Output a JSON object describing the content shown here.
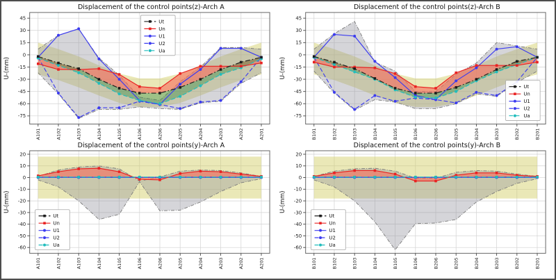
{
  "figure": {
    "border_color": "#4d4d4d",
    "background": "#ffffff"
  },
  "legend_labels": [
    "Ut",
    "Un",
    "U1",
    "U2",
    "Ua"
  ],
  "series_styles": {
    "Ut": {
      "color": "#1c1c1c",
      "dash": "7 3 1.5 3",
      "marker": "square"
    },
    "Un": {
      "color": "#e92222",
      "dash": "",
      "marker": "square"
    },
    "U1": {
      "color": "#3b3bf0",
      "dash": "",
      "marker": "circle"
    },
    "U2": {
      "color": "#3b3bf0",
      "dash": "6 3",
      "marker": "circle"
    },
    "Ua": {
      "color": "#21bdbd",
      "dash": "6 3",
      "marker": "circle"
    }
  },
  "band_colors": {
    "yellow": "rgba(209,203,96,0.45)",
    "gray": "rgba(145,145,155,0.38)",
    "gray_border": "#7a7a7a",
    "fill_un": "rgba(248,105,90,0.60)",
    "fill_ua": "rgba(52,140,70,0.42)"
  },
  "chart_data": [
    {
      "type": "line",
      "title": "Displacement of the control points(z)-Arch A",
      "ylabel": "U-(mm)",
      "categories": [
        "A101",
        "A102",
        "A103",
        "A104",
        "A105",
        "A106",
        "A206",
        "A205",
        "A204",
        "A203",
        "A202",
        "A201"
      ],
      "yticks": [
        45,
        30,
        15,
        0,
        -15,
        -30,
        -45,
        -60,
        -75
      ],
      "ylim": [
        -85,
        52
      ],
      "grid": true,
      "legend_pos": "upper-center",
      "series": [
        {
          "name": "Ut",
          "values": [
            -2,
            -10,
            -17,
            -30,
            -41,
            -47,
            -47,
            -40,
            -30,
            -18,
            -9,
            -3
          ]
        },
        {
          "name": "Un",
          "values": [
            -11,
            -18,
            -18,
            -17,
            -24,
            -39,
            -41,
            -23,
            -14,
            -14,
            -14,
            -10
          ]
        },
        {
          "name": "U1",
          "values": [
            -3,
            24,
            32,
            -5,
            -30,
            -56,
            -61,
            -36,
            -18,
            8,
            8,
            -3
          ]
        },
        {
          "name": "U2",
          "values": [
            -3,
            -47,
            -77,
            -65,
            -65,
            -57,
            -61,
            -66,
            -58,
            -56,
            -33,
            -3
          ]
        },
        {
          "name": "Ua",
          "values": [
            -4,
            -13,
            -22,
            -35,
            -48,
            -56,
            -60,
            -51,
            -38,
            -24,
            -16,
            -5
          ]
        }
      ],
      "bands": {
        "yellow_upper": [
          15,
          7,
          -2,
          -13,
          -23,
          -29,
          -29,
          -23,
          -13,
          -2,
          7,
          15
        ],
        "yellow_lower": [
          -24,
          -31,
          -40,
          -50,
          -59,
          -64,
          -64,
          -59,
          -50,
          -40,
          -31,
          -24
        ],
        "gray_upper": [
          7,
          24,
          32,
          -4,
          -25,
          -52,
          -56,
          -33,
          -15,
          9,
          9,
          7
        ],
        "gray_lower": [
          -22,
          -48,
          -78,
          -67,
          -67,
          -64,
          -66,
          -67,
          -59,
          -57,
          -35,
          -22
        ]
      }
    },
    {
      "type": "line",
      "title": "Displacement of the control points(z)-Arch B",
      "ylabel": "U-(mm)",
      "categories": [
        "B101",
        "B102",
        "B103",
        "B104",
        "B105",
        "B106",
        "B206",
        "B205",
        "B204",
        "B203",
        "B202",
        "B201"
      ],
      "yticks": [
        45,
        30,
        15,
        0,
        -15,
        -30,
        -45,
        -60,
        -75
      ],
      "ylim": [
        -85,
        52
      ],
      "grid": true,
      "legend_pos": "lower-right",
      "series": [
        {
          "name": "Ut",
          "values": [
            -2,
            -9,
            -17,
            -29,
            -41,
            -47,
            -47,
            -40,
            -30,
            -18,
            -8,
            -3
          ]
        },
        {
          "name": "Un",
          "values": [
            -9,
            -15,
            -15,
            -16,
            -23,
            -39,
            -41,
            -22,
            -13,
            -13,
            -13,
            -9
          ]
        },
        {
          "name": "U1",
          "values": [
            -3,
            25,
            23,
            -8,
            -28,
            -50,
            -55,
            -32,
            -16,
            7,
            10,
            -3
          ]
        },
        {
          "name": "U2",
          "values": [
            -3,
            -46,
            -67,
            -50,
            -57,
            -53,
            -55,
            -59,
            -46,
            -50,
            -33,
            -3
          ]
        },
        {
          "name": "Ua",
          "values": [
            -3,
            -12,
            -21,
            -30,
            -43,
            -52,
            -53,
            -45,
            -32,
            -21,
            -12,
            -3
          ]
        }
      ],
      "bands": {
        "yellow_upper": [
          15,
          7,
          -2,
          -13,
          -23,
          -29,
          -29,
          -23,
          -13,
          -2,
          7,
          15
        ],
        "yellow_lower": [
          -24,
          -31,
          -40,
          -50,
          -59,
          -64,
          -64,
          -59,
          -50,
          -40,
          -31,
          -24
        ],
        "gray_upper": [
          7,
          26,
          41,
          -9,
          -20,
          -45,
          -45,
          -24,
          -10,
          15,
          11,
          7
        ],
        "gray_lower": [
          -20,
          -47,
          -68,
          -55,
          -58,
          -66,
          -66,
          -60,
          -48,
          -51,
          -34,
          -20
        ]
      }
    },
    {
      "type": "line",
      "title": "Displacement of the control points(y)-Arch A",
      "ylabel": "U-(mm)",
      "categories": [
        "A101",
        "A102",
        "A103",
        "A104",
        "A105",
        "A106",
        "A206",
        "A205",
        "A204",
        "A203",
        "A202",
        "A201"
      ],
      "yticks": [
        20,
        10,
        0,
        -10,
        -20,
        -30,
        -40,
        -50,
        -60
      ],
      "ylim": [
        -65,
        23
      ],
      "grid": true,
      "legend_pos": "lower-left",
      "series": [
        {
          "name": "Ut",
          "values": [
            0.3,
            0.3,
            0.3,
            0.3,
            0.3,
            0.3,
            0.3,
            0.3,
            0.3,
            0.3,
            0.3,
            0.3
          ]
        },
        {
          "name": "Un",
          "values": [
            1.5,
            5,
            7.5,
            8,
            5,
            -1.5,
            -2,
            3.5,
            5.5,
            5,
            3,
            1
          ]
        },
        {
          "name": "U1",
          "values": [
            0.2,
            0.2,
            0.2,
            0.2,
            0.2,
            0.2,
            0.2,
            0.2,
            0.2,
            0.2,
            0.2,
            0.2
          ]
        },
        {
          "name": "U2",
          "values": [
            0.1,
            0.1,
            0.1,
            0.1,
            0.1,
            0.1,
            0.1,
            0.1,
            0.1,
            0.1,
            0.1,
            0.1
          ]
        },
        {
          "name": "Ua",
          "values": [
            0.4,
            0.4,
            0.4,
            0.4,
            0.4,
            0.4,
            0.4,
            0.4,
            0.4,
            0.4,
            0.4,
            0.4
          ]
        }
      ],
      "bands": {
        "yellow_upper": [
          18,
          18,
          18,
          18,
          18,
          18,
          18,
          18,
          18,
          18,
          18,
          18
        ],
        "yellow_lower": [
          -18,
          -18,
          -18,
          -18,
          -18,
          -18,
          -18,
          -18,
          -18,
          -18,
          -18,
          -18
        ],
        "gray_upper": [
          1,
          6.5,
          9,
          10,
          7.5,
          -3,
          0.5,
          5.5,
          6.5,
          6,
          4,
          1
        ],
        "gray_lower": [
          -2,
          -8,
          -20,
          -36,
          -31.5,
          -3.5,
          -28.5,
          -28,
          -21,
          -12,
          -4.5,
          -1
        ]
      }
    },
    {
      "type": "line",
      "title": "Displacement of the control points(y)-Arch B",
      "ylabel": "U-(mm)",
      "categories": [
        "B101",
        "B102",
        "B103",
        "B104",
        "B105",
        "B106",
        "B206",
        "B205",
        "B204",
        "B203",
        "B202",
        "B201"
      ],
      "yticks": [
        20,
        10,
        0,
        -10,
        -20,
        -30,
        -40,
        -50,
        -60
      ],
      "ylim": [
        -65,
        23
      ],
      "grid": true,
      "legend_pos": "lower-left",
      "series": [
        {
          "name": "Ut",
          "values": [
            0.3,
            0.3,
            0.3,
            0.3,
            0.3,
            0.3,
            0.3,
            0.3,
            0.3,
            0.3,
            0.3,
            0.3
          ]
        },
        {
          "name": "Un",
          "values": [
            1,
            4,
            6,
            6,
            3,
            -3,
            -3,
            2,
            4,
            4,
            2,
            1
          ]
        },
        {
          "name": "U1",
          "values": [
            0.2,
            0.2,
            0.2,
            0.2,
            0.2,
            0.2,
            0.2,
            0.2,
            0.2,
            0.2,
            0.2,
            0.2
          ]
        },
        {
          "name": "U2",
          "values": [
            0.1,
            0.1,
            0.1,
            0.1,
            0.1,
            0.1,
            0.1,
            0.1,
            0.1,
            0.1,
            0.1,
            0.1
          ]
        },
        {
          "name": "Ua",
          "values": [
            0.4,
            0.4,
            0.4,
            0.4,
            0.4,
            0.4,
            0.4,
            0.4,
            0.4,
            0.4,
            0.4,
            0.4
          ]
        }
      ],
      "bands": {
        "yellow_upper": [
          18,
          18,
          18,
          18,
          18,
          18,
          18,
          18,
          18,
          18,
          18,
          18
        ],
        "yellow_lower": [
          -18,
          -18,
          -18,
          -18,
          -18,
          -18,
          -18,
          -18,
          -18,
          -18,
          -18,
          -18
        ],
        "gray_upper": [
          1,
          5.5,
          7.5,
          8,
          5.5,
          -0.5,
          -0.5,
          4.5,
          6,
          5.5,
          3,
          1
        ],
        "gray_lower": [
          -2,
          -8,
          -20,
          -38,
          -62,
          -39.5,
          -39,
          -36,
          -21,
          -12,
          -5,
          -1
        ]
      }
    }
  ]
}
